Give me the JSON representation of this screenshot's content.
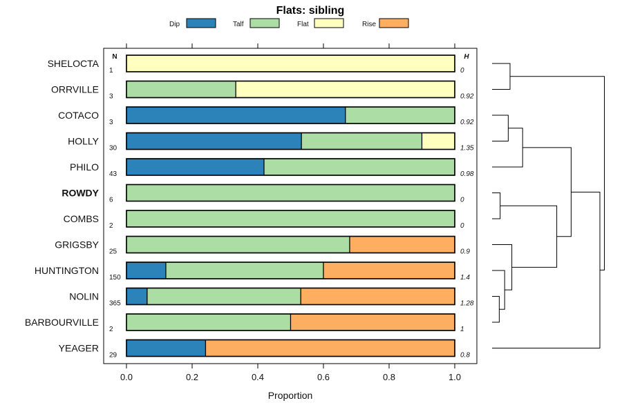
{
  "chart_data": {
    "type": "bar",
    "orientation": "horizontal",
    "stacked": true,
    "title": "Flats: sibling",
    "xlabel": "Proportion",
    "ylabel": "",
    "xlim": [
      0,
      1
    ],
    "x_ticks": [
      "0.0",
      "0.2",
      "0.4",
      "0.6",
      "0.8",
      "1.0"
    ],
    "n_header": "N",
    "h_header": "H",
    "legend": [
      {
        "name": "Dip",
        "color": "#2b83ba"
      },
      {
        "name": "Talf",
        "color": "#abdda4"
      },
      {
        "name": "Flat",
        "color": "#ffffbf"
      },
      {
        "name": "Rise",
        "color": "#fdae61"
      }
    ],
    "categories": [
      "SHELOCTA",
      "ORRVILLE",
      "COTACO",
      "HOLLY",
      "PHILO",
      "ROWDY",
      "COMBS",
      "GRIGSBY",
      "HUNTINGTON",
      "NOLIN",
      "BARBOURVILLE",
      "YEAGER"
    ],
    "bold_category": "ROWDY",
    "n": [
      "1",
      "3",
      "3",
      "30",
      "43",
      "6",
      "2",
      "25",
      "150",
      "365",
      "2",
      "29"
    ],
    "h": [
      "0",
      "0.92",
      "0.92",
      "1.35",
      "0.98",
      "0",
      "0",
      "0.9",
      "1.4",
      "1.28",
      "1",
      "0.8"
    ],
    "series": [
      {
        "name": "Dip",
        "values": [
          0,
          0,
          0.667,
          0.533,
          0.419,
          0,
          0,
          0,
          0.12,
          0.063,
          0,
          0.241
        ]
      },
      {
        "name": "Talf",
        "values": [
          0,
          0.333,
          0.333,
          0.367,
          0.581,
          1,
          1,
          0.68,
          0.48,
          0.468,
          0.5,
          0
        ]
      },
      {
        "name": "Flat",
        "values": [
          1,
          0.667,
          0,
          0.1,
          0,
          0,
          0,
          0,
          0,
          0,
          0,
          0
        ]
      },
      {
        "name": "Rise",
        "values": [
          0,
          0,
          0,
          0,
          0,
          0,
          0,
          0.32,
          0.4,
          0.469,
          0.5,
          0.759
        ]
      }
    ],
    "dendrogram": {
      "description": "hierarchical clustering of categories",
      "merges": [
        {
          "id": "m1",
          "left": "SHELOCTA",
          "right": "ORRVILLE",
          "height": 0.2
        },
        {
          "id": "m2",
          "left": "COTACO",
          "right": "HOLLY",
          "height": 0.18
        },
        {
          "id": "m3",
          "left": "m2",
          "right": "PHILO",
          "height": 0.34
        },
        {
          "id": "m4",
          "left": "ROWDY",
          "right": "COMBS",
          "height": 0.09
        },
        {
          "id": "m5",
          "left": "NOLIN",
          "right": "BARBOURVILLE",
          "height": 0.08
        },
        {
          "id": "m6",
          "left": "HUNTINGTON",
          "right": "m5",
          "height": 0.14
        },
        {
          "id": "m7",
          "left": "GRIGSBY",
          "right": "m6",
          "height": 0.22
        },
        {
          "id": "m8",
          "left": "m4",
          "right": "m7",
          "height": 0.72
        },
        {
          "id": "m9",
          "left": "m3",
          "right": "m8",
          "height": 0.88
        },
        {
          "id": "m10",
          "left": "m9",
          "right": "YEAGER",
          "height": 1.2
        },
        {
          "id": "m11",
          "left": "m1",
          "right": "m10",
          "height": 1.25
        }
      ]
    }
  }
}
